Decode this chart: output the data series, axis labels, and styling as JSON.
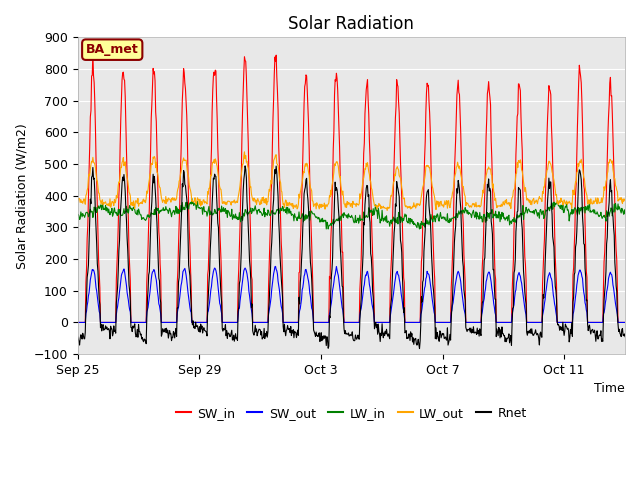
{
  "title": "Solar Radiation",
  "xlabel": "Time",
  "ylabel": "Solar Radiation (W/m2)",
  "ylim": [
    -100,
    900
  ],
  "yticks": [
    -100,
    0,
    100,
    200,
    300,
    400,
    500,
    600,
    700,
    800,
    900
  ],
  "xtick_labels": [
    "Sep 25",
    "Sep 29",
    "Oct 3",
    "Oct 7",
    "Oct 11"
  ],
  "xtick_positions": [
    0,
    4,
    8,
    12,
    16
  ],
  "legend_labels": [
    "SW_in",
    "SW_out",
    "LW_in",
    "LW_out",
    "Rnet"
  ],
  "line_colors": [
    "red",
    "blue",
    "green",
    "orange",
    "black"
  ],
  "annotation_text": "BA_met",
  "annotation_color": "#8B0000",
  "annotation_bg": "#FFFF99",
  "plot_bg": "#E8E8E8",
  "title_fontsize": 12,
  "label_fontsize": 9,
  "tick_fontsize": 9,
  "n_days": 18,
  "steps_per_day": 48
}
